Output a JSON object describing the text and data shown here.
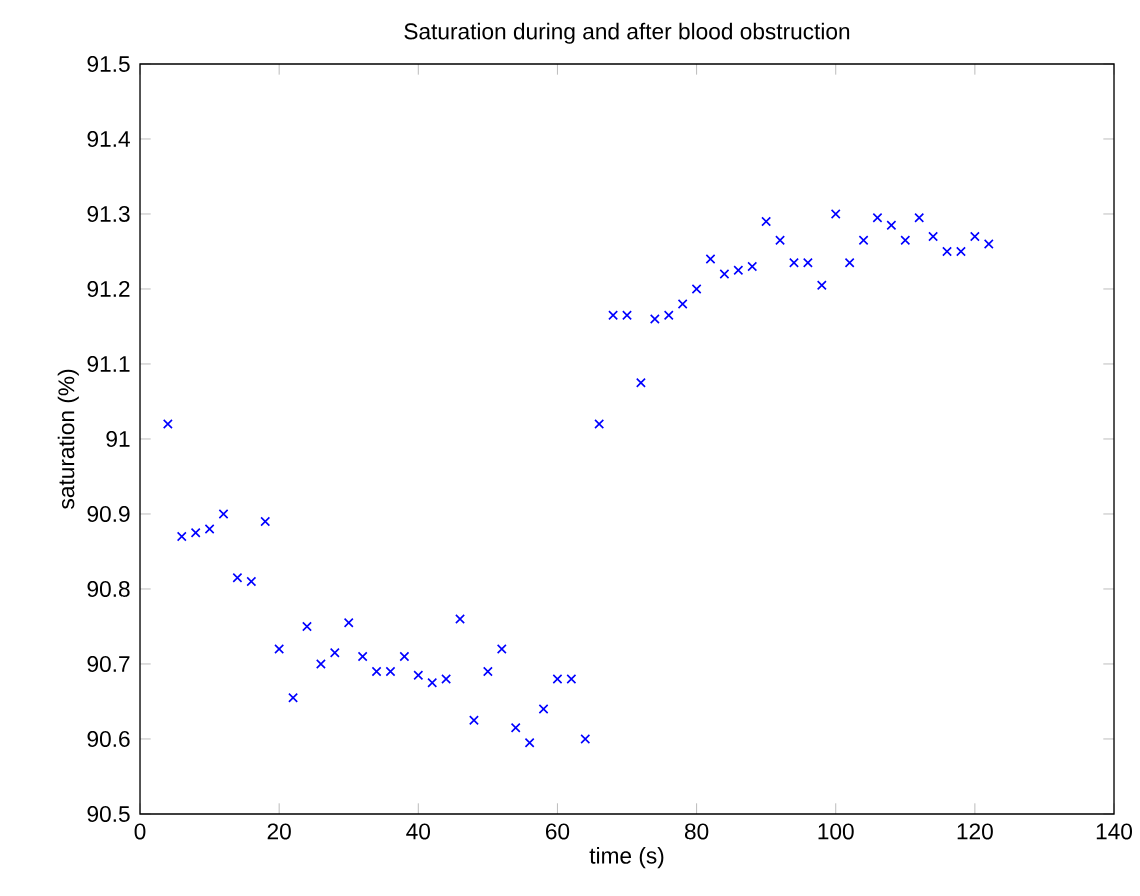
{
  "chart_data": {
    "type": "scatter",
    "title": "Saturation during and after blood obstruction",
    "xlabel": "time (s)",
    "ylabel": "saturation (%)",
    "x": [
      4,
      6,
      8,
      10,
      12,
      14,
      16,
      18,
      20,
      22,
      24,
      26,
      28,
      30,
      32,
      34,
      36,
      38,
      40,
      42,
      44,
      46,
      48,
      50,
      52,
      54,
      56,
      58,
      60,
      62,
      64,
      66,
      68,
      70,
      72,
      74,
      76,
      78,
      80,
      82,
      84,
      86,
      88,
      90,
      92,
      94,
      96,
      98,
      100,
      102,
      104,
      106,
      108,
      110,
      112,
      114,
      116,
      118,
      120,
      122
    ],
    "series": [
      {
        "color": "#0000ff",
        "values": [
          91.02,
          90.87,
          90.875,
          90.88,
          90.9,
          90.815,
          90.81,
          90.89,
          90.72,
          90.655,
          90.75,
          90.7,
          90.715,
          90.755,
          90.71,
          90.69,
          90.69,
          90.71,
          90.685,
          90.675,
          90.68,
          90.76,
          90.625,
          90.69,
          90.72,
          90.615,
          90.595,
          90.64,
          90.68,
          90.68,
          90.6,
          91.02,
          91.165,
          91.165,
          91.075,
          91.16,
          91.165,
          91.18,
          91.2,
          91.24,
          91.22,
          91.225,
          91.23,
          91.29,
          91.265,
          91.235,
          91.235,
          91.205,
          91.3,
          91.235,
          91.265,
          91.295,
          91.285,
          91.265,
          91.295,
          91.27,
          91.25,
          91.25,
          91.27,
          91.26
        ]
      }
    ],
    "marker": "cross",
    "xlim": [
      0,
      140
    ],
    "ylim": [
      90.5,
      91.5
    ],
    "xticks": [
      0,
      20,
      40,
      60,
      80,
      100,
      120,
      140
    ],
    "yticks": [
      90.5,
      90.6,
      90.7,
      90.8,
      90.9,
      91,
      91.1,
      91.2,
      91.3,
      91.4,
      91.5
    ]
  }
}
